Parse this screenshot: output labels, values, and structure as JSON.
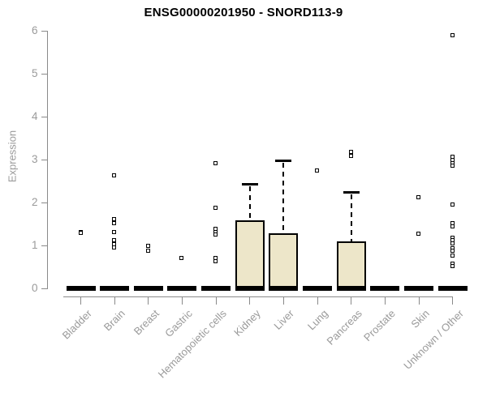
{
  "figure": {
    "title": "ENSG00000201950 - SNORD113-9"
  },
  "colors": {
    "box_fill": "#EDE6C9",
    "box_border": "#000000",
    "median_color": "#000000",
    "outlier_color": "#000000",
    "axis_line": "#8A8A8A",
    "text_muted": "#9A9A9A",
    "title_color": "#000000",
    "background": "#FFFFFF"
  },
  "chart_data": {
    "type": "boxplot",
    "title": "ENSG00000201950 - SNORD113-9",
    "xlabel": "",
    "ylabel": "Expression",
    "ylim": [
      0,
      6
    ],
    "yticks": [
      0,
      1,
      2,
      3,
      4,
      5,
      6
    ],
    "grid": false,
    "legend": false,
    "categories": [
      "Bladder",
      "Brain",
      "Breast",
      "Gastric",
      "Hematopoietic cells",
      "Kidney",
      "Liver",
      "Lung",
      "Pancreas",
      "Prostate",
      "Skin",
      "Unknown / Other"
    ],
    "series": [
      {
        "category": "Bladder",
        "q1": 0,
        "median": 0,
        "q3": 0,
        "whisker_low": 0,
        "whisker_high": 0,
        "outliers": [
          1.31,
          1.29
        ]
      },
      {
        "category": "Brain",
        "q1": 0,
        "median": 0,
        "q3": 0,
        "whisker_low": 0,
        "whisker_high": 0,
        "outliers": [
          2.64,
          1.62,
          1.51,
          1.32,
          1.12,
          1.03,
          0.95
        ]
      },
      {
        "category": "Breast",
        "q1": 0,
        "median": 0,
        "q3": 0,
        "whisker_low": 0,
        "whisker_high": 0,
        "outliers": [
          1.0,
          0.88
        ]
      },
      {
        "category": "Gastric",
        "q1": 0,
        "median": 0,
        "q3": 0,
        "whisker_low": 0,
        "whisker_high": 0,
        "outliers": [
          0.7
        ]
      },
      {
        "category": "Hematopoietic cells",
        "q1": 0,
        "median": 0,
        "q3": 0,
        "whisker_low": 0,
        "whisker_high": 0,
        "outliers": [
          2.92,
          1.87,
          1.38,
          1.31,
          1.25,
          0.7,
          0.64
        ]
      },
      {
        "category": "Kidney",
        "q1": 0,
        "median": 0,
        "q3": 1.58,
        "whisker_low": 0,
        "whisker_high": 2.43,
        "outliers": []
      },
      {
        "category": "Liver",
        "q1": 0,
        "median": 0,
        "q3": 1.28,
        "whisker_low": 0,
        "whisker_high": 2.97,
        "outliers": []
      },
      {
        "category": "Lung",
        "q1": 0,
        "median": 0,
        "q3": 0,
        "whisker_low": 0,
        "whisker_high": 0,
        "outliers": [
          2.74
        ]
      },
      {
        "category": "Pancreas",
        "q1": 0,
        "median": 0,
        "q3": 1.09,
        "whisker_low": 0,
        "whisker_high": 2.24,
        "outliers": [
          3.17,
          3.08
        ]
      },
      {
        "category": "Prostate",
        "q1": 0,
        "median": 0,
        "q3": 0,
        "whisker_low": 0,
        "whisker_high": 0,
        "outliers": []
      },
      {
        "category": "Skin",
        "q1": 0,
        "median": 0,
        "q3": 0,
        "whisker_low": 0,
        "whisker_high": 0,
        "outliers": [
          2.13,
          1.28
        ]
      },
      {
        "category": "Unknown / Other",
        "q1": 0,
        "median": 0,
        "q3": 0,
        "whisker_low": 0,
        "whisker_high": 0,
        "outliers": [
          5.9,
          3.07,
          3.0,
          2.92,
          2.86,
          1.95,
          1.51,
          1.44,
          1.18,
          1.12,
          1.05,
          0.94,
          0.88,
          0.76,
          0.57,
          0.51
        ]
      }
    ]
  }
}
